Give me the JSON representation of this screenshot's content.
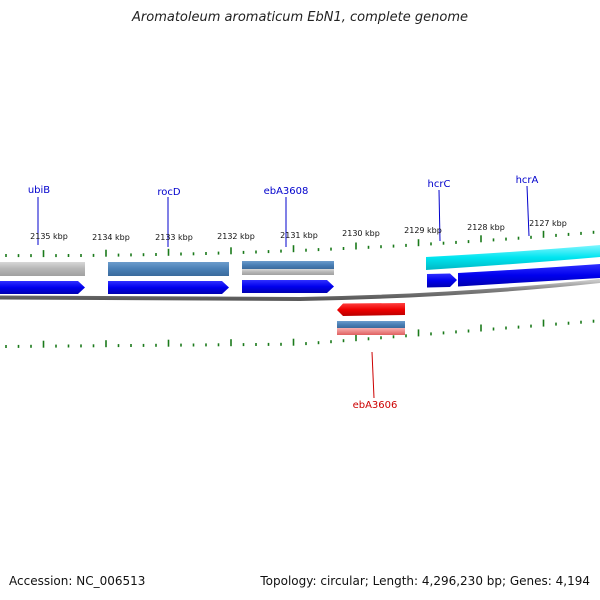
{
  "title": "Aromatoleum aromaticum EbN1, complete genome",
  "footer": {
    "accession": "Accession: NC_006513",
    "summary": "Topology: circular; Length: 4,296,230 bp; Genes: 4,194"
  },
  "ticks": [
    "2135 kbp",
    "2134 kbp",
    "2133 kbp",
    "2132 kbp",
    "2131 kbp",
    "2130 kbp",
    "2129 kbp",
    "2128 kbp",
    "2127 kbp"
  ],
  "genes_forward": [
    "ubiB",
    "rocD",
    "ebA3608",
    "hcrC",
    "hcrA"
  ],
  "genes_reverse": [
    "ebA3606"
  ],
  "colors": {
    "forward_gene_label": "#0000cc",
    "reverse_gene_label": "#cc0000",
    "cds_blue": "#0000ee",
    "gene_steelblue": "#4a7fb5",
    "gene_grey": "#b9b9b9",
    "gene_cyan": "#00e5f0",
    "gene_red": "#ee0000",
    "gene_pink": "#f08080",
    "tick_green": "#1a7a1a",
    "backbone": "#7d7d7d"
  }
}
